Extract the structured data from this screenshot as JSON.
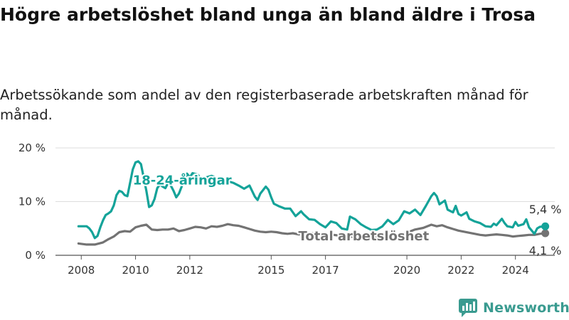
{
  "title": "Högre arbetslöshet bland unga än bland äldre i Trosa",
  "subtitle": "Arbetssökande som andel av den registerbaserade arbetskraften månad för månad.",
  "brand": {
    "name": "Newsworthy",
    "icon": "newsworthy-logo-icon",
    "color": "#3a9b90"
  },
  "chart_data": {
    "type": "line",
    "x_ticks": [
      "2008",
      "2010",
      "2012",
      "2015",
      "2017",
      "2020",
      "2022",
      "2024"
    ],
    "y_ticks": [
      "0 %",
      "10 %",
      "20 %"
    ],
    "ylim": [
      0,
      20
    ],
    "xlim": [
      2007.9,
      2025.1
    ],
    "grid": true,
    "legend": "direct labels on lines",
    "series": [
      {
        "name": "18-24-åringar",
        "color": "#14a399",
        "end_label": "5,4 %",
        "points": [
          [
            2007.9,
            5.4
          ],
          [
            2008.2,
            5.4
          ],
          [
            2008.3,
            5.0
          ],
          [
            2008.4,
            4.3
          ],
          [
            2008.5,
            3.2
          ],
          [
            2008.6,
            3.6
          ],
          [
            2008.7,
            5.2
          ],
          [
            2008.8,
            6.5
          ],
          [
            2008.9,
            7.5
          ],
          [
            2009.0,
            7.8
          ],
          [
            2009.1,
            8.2
          ],
          [
            2009.2,
            9.3
          ],
          [
            2009.3,
            11.2
          ],
          [
            2009.4,
            12.0
          ],
          [
            2009.5,
            11.8
          ],
          [
            2009.6,
            11.2
          ],
          [
            2009.7,
            11.0
          ],
          [
            2009.8,
            13.5
          ],
          [
            2009.9,
            16.0
          ],
          [
            2010.0,
            17.3
          ],
          [
            2010.1,
            17.5
          ],
          [
            2010.2,
            17.0
          ],
          [
            2010.3,
            14.5
          ],
          [
            2010.4,
            12.0
          ],
          [
            2010.5,
            9.0
          ],
          [
            2010.6,
            9.3
          ],
          [
            2010.7,
            10.5
          ],
          [
            2010.8,
            12.5
          ],
          [
            2010.9,
            13.2
          ],
          [
            2011.0,
            12.8
          ],
          [
            2011.1,
            12.5
          ],
          [
            2011.2,
            13.5
          ],
          [
            2011.3,
            13.0
          ],
          [
            2011.4,
            12.0
          ],
          [
            2011.5,
            10.8
          ],
          [
            2011.6,
            11.5
          ],
          [
            2011.7,
            12.8
          ],
          [
            2011.8,
            14.0
          ],
          [
            2011.9,
            15.2
          ],
          [
            2012.0,
            14.5
          ],
          [
            2012.1,
            15.3
          ],
          [
            2012.3,
            15.0
          ],
          [
            2012.4,
            14.3
          ],
          [
            2012.6,
            14.5
          ],
          [
            2012.8,
            14.8
          ],
          [
            2013.0,
            14.4
          ],
          [
            2013.2,
            14.2
          ],
          [
            2013.4,
            13.8
          ],
          [
            2013.6,
            13.5
          ],
          [
            2013.8,
            13.0
          ],
          [
            2014.0,
            12.4
          ],
          [
            2014.2,
            13.0
          ],
          [
            2014.4,
            10.9
          ],
          [
            2014.5,
            10.3
          ],
          [
            2014.6,
            11.5
          ],
          [
            2014.8,
            12.8
          ],
          [
            2014.9,
            12.2
          ],
          [
            2015.0,
            10.8
          ],
          [
            2015.1,
            9.6
          ],
          [
            2015.3,
            9.1
          ],
          [
            2015.5,
            8.7
          ],
          [
            2015.7,
            8.7
          ],
          [
            2015.9,
            7.3
          ],
          [
            2016.1,
            8.2
          ],
          [
            2016.2,
            7.6
          ],
          [
            2016.4,
            6.7
          ],
          [
            2016.6,
            6.6
          ],
          [
            2016.8,
            5.8
          ],
          [
            2017.0,
            5.2
          ],
          [
            2017.2,
            6.3
          ],
          [
            2017.4,
            6.0
          ],
          [
            2017.6,
            5.0
          ],
          [
            2017.8,
            4.8
          ],
          [
            2017.9,
            7.2
          ],
          [
            2018.1,
            6.7
          ],
          [
            2018.3,
            5.8
          ],
          [
            2018.5,
            5.2
          ],
          [
            2018.7,
            4.7
          ],
          [
            2018.9,
            4.8
          ],
          [
            2019.1,
            5.4
          ],
          [
            2019.3,
            6.6
          ],
          [
            2019.5,
            5.8
          ],
          [
            2019.7,
            6.5
          ],
          [
            2019.9,
            8.2
          ],
          [
            2020.1,
            7.8
          ],
          [
            2020.3,
            8.5
          ],
          [
            2020.5,
            7.5
          ],
          [
            2020.7,
            9.2
          ],
          [
            2020.9,
            11.0
          ],
          [
            2021.0,
            11.6
          ],
          [
            2021.1,
            11.0
          ],
          [
            2021.2,
            9.5
          ],
          [
            2021.4,
            10.2
          ],
          [
            2021.5,
            8.5
          ],
          [
            2021.7,
            8.0
          ],
          [
            2021.8,
            9.2
          ],
          [
            2021.9,
            7.7
          ],
          [
            2022.0,
            7.4
          ],
          [
            2022.2,
            8.0
          ],
          [
            2022.3,
            6.8
          ],
          [
            2022.5,
            6.3
          ],
          [
            2022.7,
            6.0
          ],
          [
            2022.9,
            5.4
          ],
          [
            2023.1,
            5.3
          ],
          [
            2023.2,
            5.9
          ],
          [
            2023.3,
            5.6
          ],
          [
            2023.5,
            6.8
          ],
          [
            2023.6,
            6.0
          ],
          [
            2023.7,
            5.4
          ],
          [
            2023.9,
            5.2
          ],
          [
            2024.0,
            6.2
          ],
          [
            2024.1,
            5.5
          ],
          [
            2024.3,
            5.8
          ],
          [
            2024.4,
            6.7
          ],
          [
            2024.5,
            5.2
          ],
          [
            2024.7,
            4.0
          ],
          [
            2024.8,
            5.0
          ],
          [
            2024.9,
            5.3
          ],
          [
            2025.1,
            5.4
          ]
        ]
      },
      {
        "name": "Total arbetslöshet",
        "color": "#737373",
        "end_label": "4,1 %",
        "points": [
          [
            2007.9,
            2.2
          ],
          [
            2008.2,
            2.0
          ],
          [
            2008.5,
            2.0
          ],
          [
            2008.8,
            2.4
          ],
          [
            2009.0,
            3.0
          ],
          [
            2009.2,
            3.5
          ],
          [
            2009.4,
            4.3
          ],
          [
            2009.6,
            4.5
          ],
          [
            2009.8,
            4.4
          ],
          [
            2010.0,
            5.2
          ],
          [
            2010.2,
            5.5
          ],
          [
            2010.4,
            5.7
          ],
          [
            2010.6,
            4.8
          ],
          [
            2010.8,
            4.7
          ],
          [
            2011.0,
            4.8
          ],
          [
            2011.2,
            4.8
          ],
          [
            2011.4,
            5.0
          ],
          [
            2011.6,
            4.5
          ],
          [
            2011.8,
            4.7
          ],
          [
            2012.0,
            5.0
          ],
          [
            2012.2,
            5.3
          ],
          [
            2012.4,
            5.2
          ],
          [
            2012.6,
            5.0
          ],
          [
            2012.8,
            5.4
          ],
          [
            2013.0,
            5.3
          ],
          [
            2013.2,
            5.5
          ],
          [
            2013.4,
            5.8
          ],
          [
            2013.6,
            5.6
          ],
          [
            2013.8,
            5.5
          ],
          [
            2014.0,
            5.2
          ],
          [
            2014.2,
            4.9
          ],
          [
            2014.4,
            4.6
          ],
          [
            2014.6,
            4.4
          ],
          [
            2014.8,
            4.3
          ],
          [
            2015.0,
            4.4
          ],
          [
            2015.2,
            4.3
          ],
          [
            2015.4,
            4.1
          ],
          [
            2015.6,
            4.0
          ],
          [
            2015.8,
            4.1
          ],
          [
            2016.0,
            3.9
          ],
          [
            2016.2,
            4.0
          ],
          [
            2016.5,
            4.1
          ],
          [
            2016.8,
            3.8
          ],
          [
            2017.0,
            3.7
          ],
          [
            2017.3,
            3.8
          ],
          [
            2017.6,
            3.6
          ],
          [
            2017.9,
            3.5
          ],
          [
            2018.2,
            3.3
          ],
          [
            2018.5,
            3.2
          ],
          [
            2018.8,
            3.3
          ],
          [
            2019.1,
            3.6
          ],
          [
            2019.4,
            3.9
          ],
          [
            2019.7,
            3.8
          ],
          [
            2020.0,
            4.2
          ],
          [
            2020.3,
            4.8
          ],
          [
            2020.6,
            5.1
          ],
          [
            2020.9,
            5.7
          ],
          [
            2021.1,
            5.4
          ],
          [
            2021.3,
            5.6
          ],
          [
            2021.5,
            5.2
          ],
          [
            2021.7,
            4.9
          ],
          [
            2021.9,
            4.6
          ],
          [
            2022.1,
            4.4
          ],
          [
            2022.3,
            4.2
          ],
          [
            2022.5,
            4.0
          ],
          [
            2022.7,
            3.8
          ],
          [
            2022.9,
            3.7
          ],
          [
            2023.1,
            3.8
          ],
          [
            2023.3,
            3.9
          ],
          [
            2023.5,
            3.8
          ],
          [
            2023.7,
            3.7
          ],
          [
            2023.9,
            3.5
          ],
          [
            2024.1,
            3.6
          ],
          [
            2024.3,
            3.7
          ],
          [
            2024.5,
            3.8
          ],
          [
            2024.7,
            3.8
          ],
          [
            2024.9,
            4.0
          ],
          [
            2025.1,
            4.1
          ]
        ]
      }
    ]
  }
}
